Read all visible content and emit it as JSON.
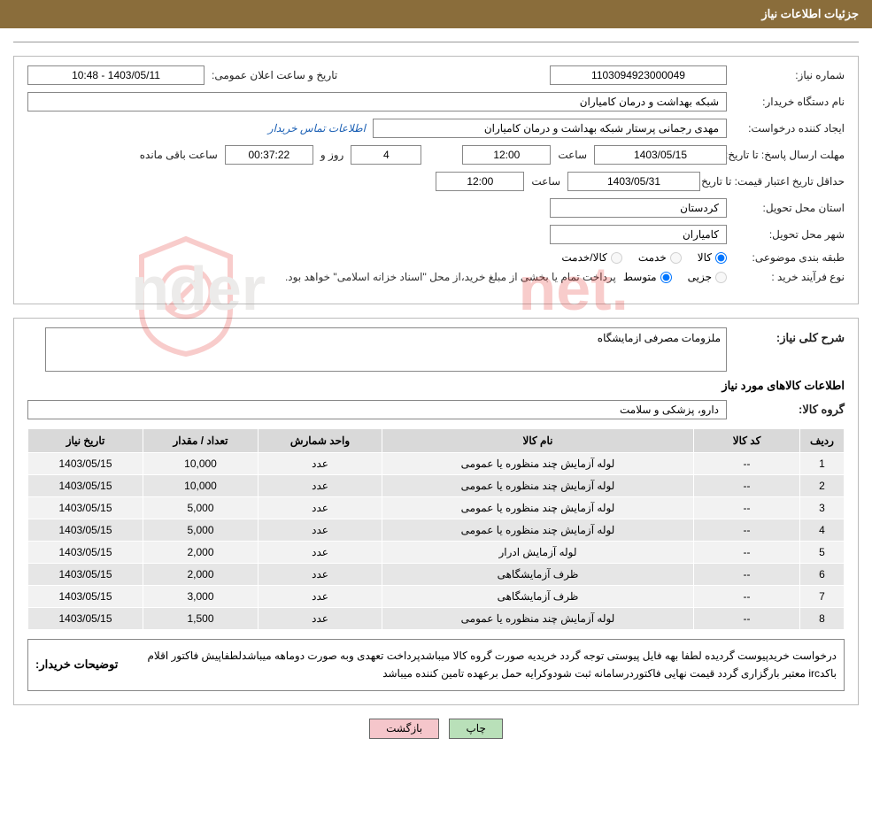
{
  "header": {
    "title": "جزئیات اطلاعات نیاز"
  },
  "form": {
    "need_no_lbl": "شماره نیاز:",
    "need_no": "1103094923000049",
    "announce_lbl": "تاریخ و ساعت اعلان عمومی:",
    "announce_val": "1403/05/11 - 10:48",
    "buyer_org_lbl": "نام دستگاه خریدار:",
    "buyer_org": "شبکه بهداشت و درمان کامیاران",
    "creator_lbl": "ایجاد کننده درخواست:",
    "creator": "مهدی رجمانی پرستار شبکه بهداشت و درمان کامیاران",
    "contact_link": "اطلاعات تماس خریدار",
    "deadline_lbl": "مهلت ارسال پاسخ: تا تاریخ:",
    "deadline_date": "1403/05/15",
    "time_lbl": "ساعت",
    "deadline_time": "12:00",
    "day_lbl": "روز و",
    "days_left": "4",
    "hours_left": "00:37:22",
    "remain_lbl": "ساعت باقی مانده",
    "min_valid_lbl": "حداقل تاریخ اعتبار قیمت: تا تاریخ:",
    "min_valid_date": "1403/05/31",
    "min_valid_time": "12:00",
    "province_lbl": "استان محل تحویل:",
    "province": "کردستان",
    "city_lbl": "شهر محل تحویل:",
    "city": "کامیاران",
    "class_lbl": "طبقه بندی موضوعی:",
    "class_opts": {
      "a": "کالا",
      "b": "خدمت",
      "c": "کالا/خدمت"
    },
    "ptype_lbl": "نوع فرآیند خرید :",
    "ptype_opts": {
      "a": "جزیی",
      "b": "متوسط"
    },
    "ptype_note": "پرداخت تمام یا بخشی از مبلغ خرید،از محل \"اسناد خزانه اسلامی\" خواهد بود."
  },
  "need": {
    "desc_lbl": "شرح کلی نیاز:",
    "desc": "ملزومات مصرفی ازمایشگاه",
    "items_title": "اطلاعات کالاهای مورد نیاز",
    "group_lbl": "گروه کالا:",
    "group": "دارو، پزشکی و سلامت"
  },
  "table": {
    "cols": [
      "ردیف",
      "کد کالا",
      "نام کالا",
      "واحد شمارش",
      "تعداد / مقدار",
      "تاریخ نیاز"
    ],
    "rows": [
      [
        "1",
        "--",
        "لوله آزمایش چند منظوره یا عمومی",
        "عدد",
        "10,000",
        "1403/05/15"
      ],
      [
        "2",
        "--",
        "لوله آزمایش چند منظوره یا عمومی",
        "عدد",
        "10,000",
        "1403/05/15"
      ],
      [
        "3",
        "--",
        "لوله آزمایش چند منظوره یا عمومی",
        "عدد",
        "5,000",
        "1403/05/15"
      ],
      [
        "4",
        "--",
        "لوله آزمایش چند منظوره یا عمومی",
        "عدد",
        "5,000",
        "1403/05/15"
      ],
      [
        "5",
        "--",
        "لوله آزمایش ادرار",
        "عدد",
        "2,000",
        "1403/05/15"
      ],
      [
        "6",
        "--",
        "ظرف آزمایشگاهی",
        "عدد",
        "2,000",
        "1403/05/15"
      ],
      [
        "7",
        "--",
        "ظرف آزمایشگاهی",
        "عدد",
        "3,000",
        "1403/05/15"
      ],
      [
        "8",
        "--",
        "لوله آزمایش چند منظوره یا عمومی",
        "عدد",
        "1,500",
        "1403/05/15"
      ]
    ]
  },
  "buyer_desc": {
    "lbl": "توضیحات خریدار:",
    "txt": "درخواست خریدپیوست گردیده لطفا بهه فایل پیوستی توجه گردد خریدیه صورت گروه کالا میباشدپرداخت تعهدی وبه صورت دوماهه میباشدلطفاپیش فاکتور اقلام باکدirc معتبر بارگزاری گردد قیمت نهایی فاکتوردرسامانه ثبت شودوکرایه حمل برعهده تامین کننده میباشد"
  },
  "buttons": {
    "print": "چاپ",
    "back": "بازگشت"
  },
  "colors": {
    "header_bg": "#8a6d3b",
    "header_fg": "#ffffff",
    "border": "#bbbbbb",
    "input_border": "#888888",
    "th_bg": "#d9d9d9",
    "row_odd": "#f2f2f2",
    "row_even": "#e6e6e6",
    "btn_primary": "#b9e0b9",
    "btn_back": "#f5c6cb",
    "link": "#1a5fb4",
    "wm_red": "#e53935",
    "wm_gray": "#b5b1ad"
  }
}
